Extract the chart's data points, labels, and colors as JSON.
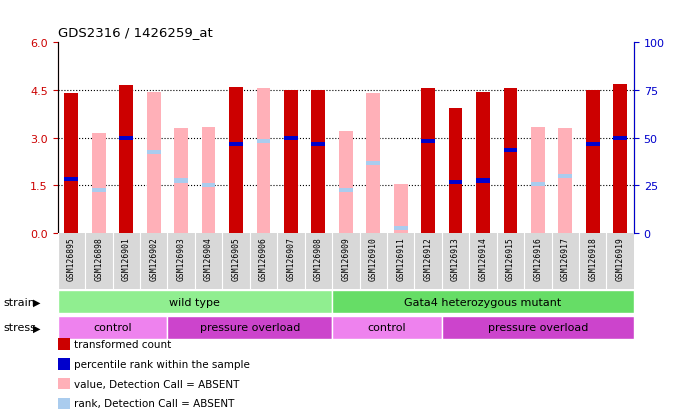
{
  "title": "GDS2316 / 1426259_at",
  "samples": [
    "GSM126895",
    "GSM126898",
    "GSM126901",
    "GSM126902",
    "GSM126903",
    "GSM126904",
    "GSM126905",
    "GSM126906",
    "GSM126907",
    "GSM126908",
    "GSM126909",
    "GSM126910",
    "GSM126911",
    "GSM126912",
    "GSM126913",
    "GSM126914",
    "GSM126915",
    "GSM126916",
    "GSM126917",
    "GSM126918",
    "GSM126919"
  ],
  "red_values": [
    4.4,
    0,
    4.65,
    0,
    0,
    0,
    4.6,
    0,
    4.5,
    4.5,
    0,
    0,
    0,
    4.55,
    3.95,
    4.45,
    4.55,
    0,
    0,
    4.5,
    4.7
  ],
  "pink_values": [
    0,
    3.15,
    0,
    4.45,
    3.3,
    3.35,
    0,
    4.55,
    0,
    0,
    3.2,
    4.4,
    1.55,
    0,
    0,
    0,
    0,
    3.35,
    3.3,
    0,
    0
  ],
  "blue_values": [
    1.7,
    0,
    3.0,
    0,
    0,
    0,
    2.8,
    0,
    3.0,
    2.8,
    0,
    0,
    0,
    2.9,
    1.6,
    1.65,
    2.6,
    0,
    0,
    2.8,
    3.0
  ],
  "lightblue_values": [
    0,
    1.35,
    0,
    2.55,
    1.65,
    1.5,
    0,
    2.9,
    0,
    0,
    1.35,
    2.2,
    0.15,
    0,
    0,
    0,
    0,
    1.55,
    1.8,
    0,
    0
  ],
  "is_absent": [
    false,
    true,
    false,
    true,
    true,
    true,
    false,
    true,
    false,
    false,
    true,
    true,
    true,
    false,
    false,
    false,
    false,
    true,
    true,
    false,
    false
  ],
  "strain_groups": [
    {
      "label": "wild type",
      "start": 0,
      "end": 10,
      "color": "#90EE90"
    },
    {
      "label": "Gata4 heterozygous mutant",
      "start": 10,
      "end": 21,
      "color": "#66DD66"
    }
  ],
  "stress_groups": [
    {
      "label": "control",
      "start": 0,
      "end": 4,
      "color": "#EE82EE"
    },
    {
      "label": "pressure overload",
      "start": 4,
      "end": 10,
      "color": "#CC44CC"
    },
    {
      "label": "control",
      "start": 10,
      "end": 14,
      "color": "#EE82EE"
    },
    {
      "label": "pressure overload",
      "start": 14,
      "end": 21,
      "color": "#CC44CC"
    }
  ],
  "ylim_left": [
    0,
    6
  ],
  "ylim_right": [
    0,
    100
  ],
  "yticks_left": [
    0,
    1.5,
    3.0,
    4.5,
    6
  ],
  "yticks_right": [
    0,
    25,
    50,
    75,
    100
  ],
  "grid_lines": [
    1.5,
    3.0,
    4.5
  ],
  "red_color": "#CC0000",
  "pink_color": "#FFB0B8",
  "blue_color": "#0000CC",
  "lightblue_color": "#AACCEE",
  "left_axis_color": "#CC0000",
  "right_axis_color": "#0000CC",
  "legend_items": [
    {
      "color": "#CC0000",
      "label": "transformed count"
    },
    {
      "color": "#0000CC",
      "label": "percentile rank within the sample"
    },
    {
      "color": "#FFB0B8",
      "label": "value, Detection Call = ABSENT"
    },
    {
      "color": "#AACCEE",
      "label": "rank, Detection Call = ABSENT"
    }
  ]
}
